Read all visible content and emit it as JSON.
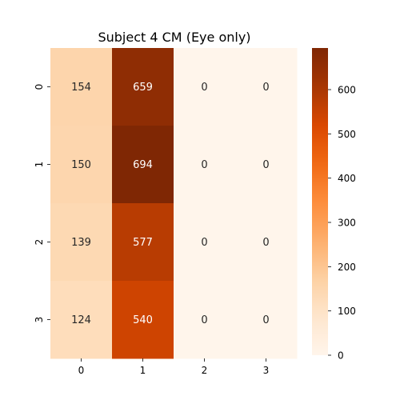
{
  "chart_data": {
    "type": "heatmap",
    "title": "Subject 4 CM (Eye only)",
    "x_categories": [
      "0",
      "1",
      "2",
      "3"
    ],
    "y_categories": [
      "0",
      "1",
      "2",
      "3"
    ],
    "values": [
      [
        154,
        659,
        0,
        0
      ],
      [
        150,
        694,
        0,
        0
      ],
      [
        139,
        577,
        0,
        0
      ],
      [
        124,
        540,
        0,
        0
      ]
    ],
    "colorbar": {
      "min": 0,
      "max": 694,
      "ticks": [
        0,
        100,
        200,
        300,
        400,
        500,
        600
      ],
      "colormap": "Oranges"
    },
    "grid": false,
    "legend": "colorbar-right"
  }
}
